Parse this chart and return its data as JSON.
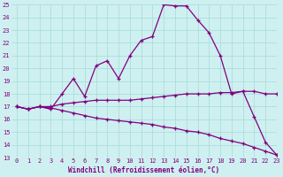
{
  "xlabel": "Windchill (Refroidissement éolien,°C)",
  "background_color": "#cff0f0",
  "grid_color": "#aadddd",
  "line_color": "#800080",
  "x": [
    0,
    1,
    2,
    3,
    4,
    5,
    6,
    7,
    8,
    9,
    10,
    11,
    12,
    13,
    14,
    15,
    16,
    17,
    18,
    19,
    20,
    21,
    22,
    23
  ],
  "line1_y": [
    17.0,
    16.8,
    17.0,
    16.8,
    18.0,
    19.2,
    17.8,
    20.2,
    20.6,
    19.2,
    21.0,
    22.2,
    22.5,
    25.0,
    24.9,
    24.9,
    23.8,
    22.8,
    21.0,
    18.0,
    18.2,
    16.2,
    14.2,
    13.2
  ],
  "line2_y": [
    17.0,
    16.8,
    17.0,
    17.0,
    17.2,
    17.3,
    17.4,
    17.5,
    17.5,
    17.5,
    17.5,
    17.6,
    17.7,
    17.8,
    17.9,
    18.0,
    18.0,
    18.0,
    18.1,
    18.1,
    18.2,
    18.2,
    18.0,
    18.0
  ],
  "line3_y": [
    17.0,
    16.8,
    17.0,
    16.9,
    16.7,
    16.5,
    16.3,
    16.1,
    16.0,
    15.9,
    15.8,
    15.7,
    15.6,
    15.4,
    15.3,
    15.1,
    15.0,
    14.8,
    14.5,
    14.3,
    14.1,
    13.8,
    13.5,
    13.2
  ],
  "ylim": [
    13,
    25
  ],
  "xlim": [
    -0.5,
    23
  ],
  "yticks": [
    13,
    14,
    15,
    16,
    17,
    18,
    19,
    20,
    21,
    22,
    23,
    24,
    25
  ],
  "xticks": [
    0,
    1,
    2,
    3,
    4,
    5,
    6,
    7,
    8,
    9,
    10,
    11,
    12,
    13,
    14,
    15,
    16,
    17,
    18,
    19,
    20,
    21,
    22,
    23
  ]
}
